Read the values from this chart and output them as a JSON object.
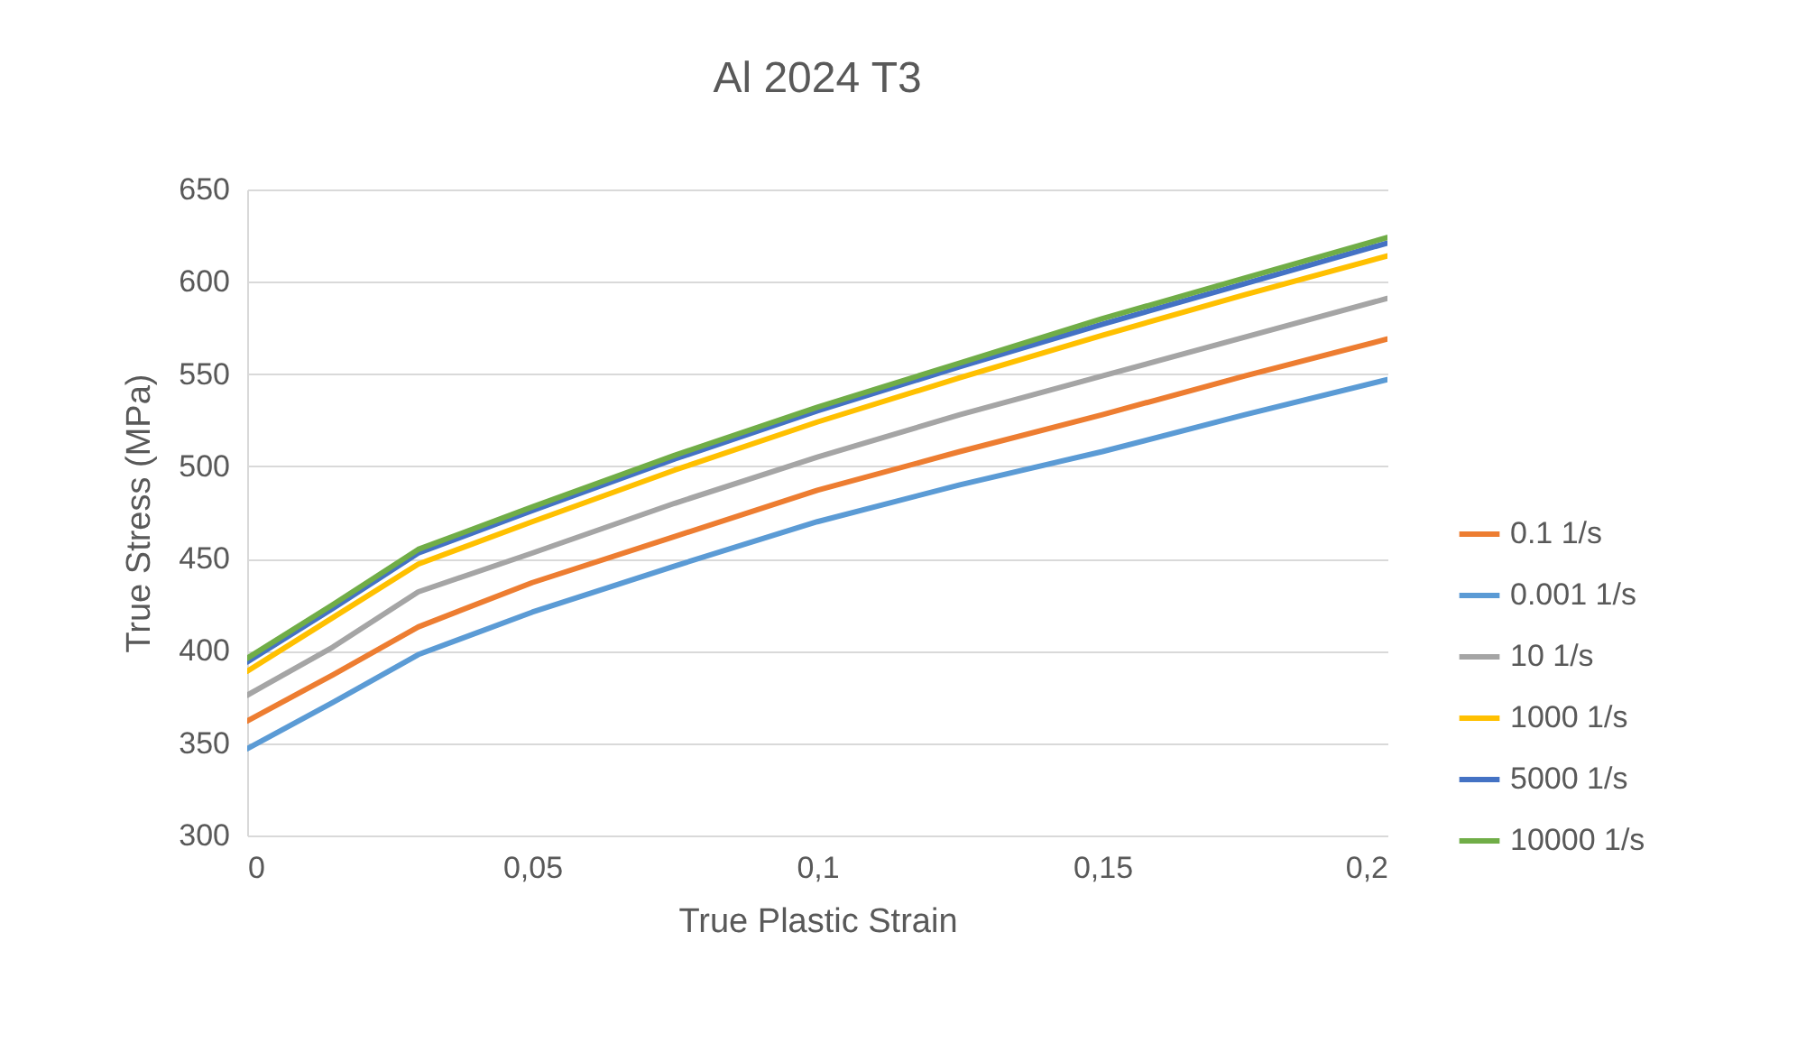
{
  "chart_data": {
    "type": "line",
    "title": "Al 2024 T3",
    "xlabel": "True Plastic Strain",
    "ylabel": "True Stress (MPa)",
    "x": [
      0,
      0.015,
      0.03,
      0.05,
      0.075,
      0.1,
      0.125,
      0.15,
      0.175,
      0.2
    ],
    "series": [
      {
        "name": "0.1 1/s",
        "color": "#ed7d31",
        "values": [
          362,
          387,
          413,
          437,
          462,
          487,
          508,
          528,
          549,
          569
        ]
      },
      {
        "name": "0.001 1/s",
        "color": "#5b9bd5",
        "values": [
          347,
          372,
          398,
          421,
          446,
          470,
          490,
          508,
          528,
          547
        ]
      },
      {
        "name": "10 1/s",
        "color": "#a5a5a5",
        "values": [
          376,
          402,
          432,
          453,
          480,
          505,
          528,
          549,
          570,
          591
        ]
      },
      {
        "name": "1000 1/s",
        "color": "#ffc000",
        "values": [
          389,
          418,
          447,
          470,
          498,
          524,
          548,
          571,
          593,
          614
        ]
      },
      {
        "name": "5000 1/s",
        "color": "#4472c4",
        "values": [
          394,
          423,
          453,
          476,
          504,
          530,
          554,
          577,
          599,
          621
        ]
      },
      {
        "name": "10000 1/s",
        "color": "#70ad47",
        "values": [
          396,
          425,
          455,
          478,
          506,
          532,
          556,
          580,
          602,
          624
        ]
      }
    ],
    "xlim": [
      0,
      0.2
    ],
    "xticks": [
      0,
      {
        "value": 0.05,
        "label": "0,05"
      },
      {
        "value": 0.1,
        "label": "0,1"
      },
      {
        "value": 0.15,
        "label": "0,15"
      },
      {
        "value": 0.2,
        "label": "0,2"
      }
    ],
    "ylim": [
      300,
      650
    ],
    "yticks": [
      300,
      350,
      400,
      450,
      500,
      550,
      600,
      650
    ],
    "grid": "y",
    "legend": "right",
    "marker": "none",
    "line_style": "solid"
  }
}
